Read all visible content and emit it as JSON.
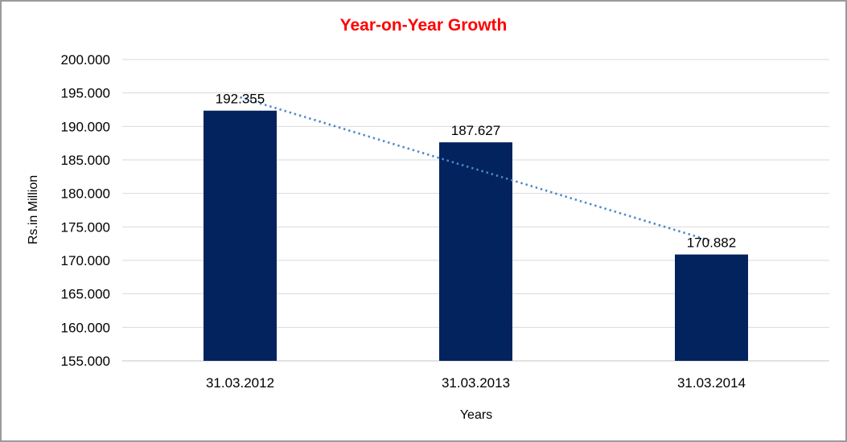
{
  "window": {
    "background_color": "#ffffff",
    "border_color": "#9a9a9a"
  },
  "chart_data": {
    "type": "bar",
    "title": "Year-on-Year Growth",
    "title_color": "#ff0000",
    "xlabel": "Years",
    "ylabel": "Rs.in Million",
    "categories": [
      "31.03.2012",
      "31.03.2013",
      "31.03.2014"
    ],
    "series": [
      {
        "name": "Rs.in Million",
        "values": [
          192.355,
          187.627,
          170.882
        ]
      }
    ],
    "data_labels": [
      "192.355",
      "187.627",
      "170.882"
    ],
    "ylim": [
      155,
      200
    ],
    "ytick_step": 5,
    "ytick_labels": [
      "200.000",
      "195.000",
      "190.000",
      "185.000",
      "180.000",
      "175.000",
      "170.000",
      "165.000",
      "160.000",
      "155.000"
    ],
    "grid": true,
    "legend": "none",
    "bar_color": "#02235e",
    "gridline_color": "#d9d9d9",
    "axis_line_color": "#c6c6c6",
    "text_color": "#000000",
    "trendline": {
      "type": "linear",
      "style": "dotted",
      "color": "#4e87c9"
    }
  }
}
